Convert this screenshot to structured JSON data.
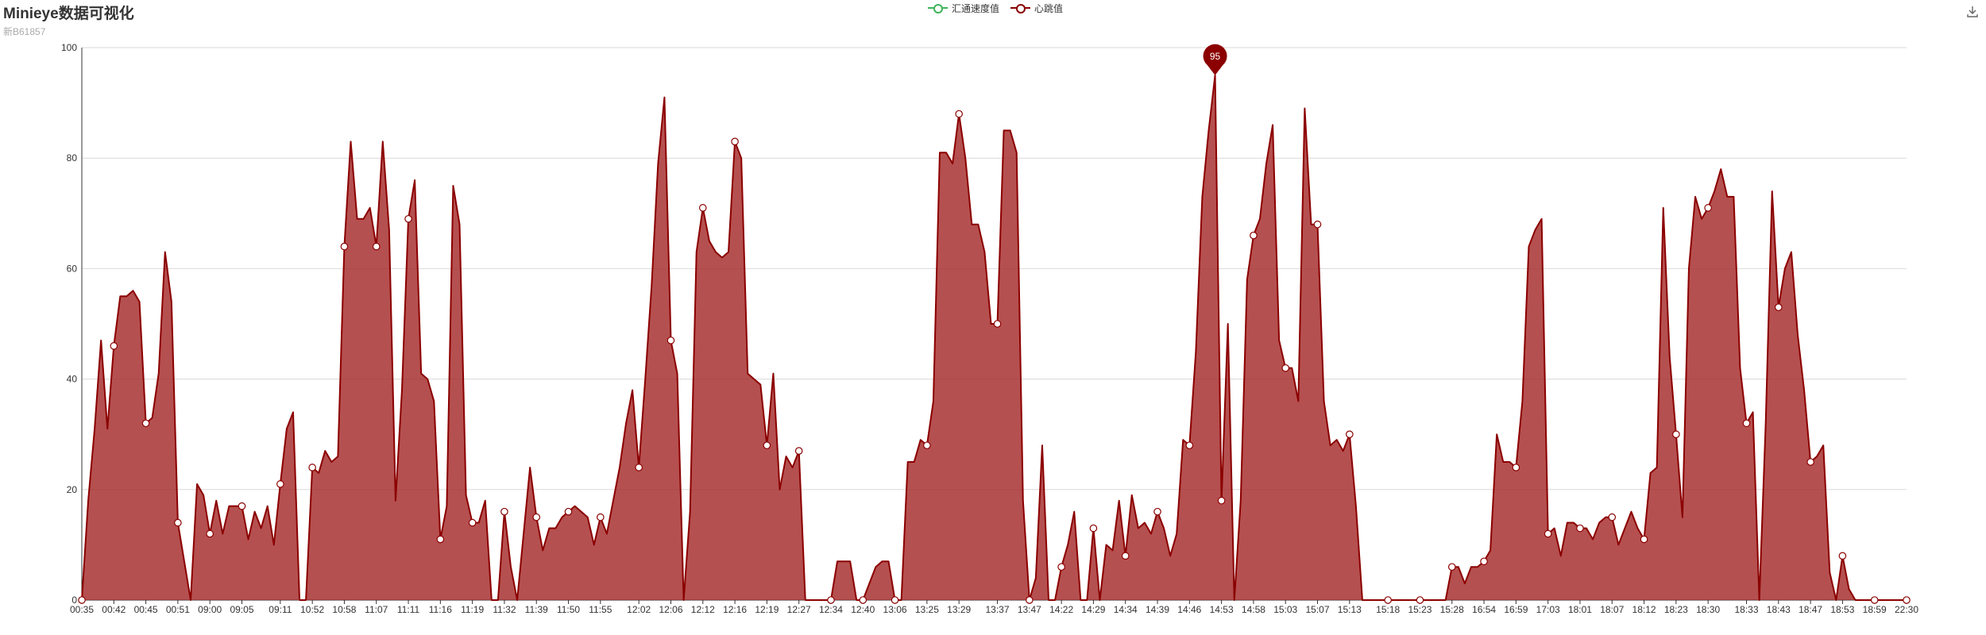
{
  "title": "Minieye数据可视化",
  "subtitle": "新B61857",
  "legend": [
    {
      "name": "汇通速度值",
      "color": "#3fb35a"
    },
    {
      "name": "心跳值",
      "color": "#8b0000"
    }
  ],
  "toolbox": {
    "icon": "download-icon"
  },
  "colors": {
    "area_fill": "#a52a2a",
    "line": "#8b0000",
    "grid": "#d9d9d9",
    "axis": "#333333",
    "marker": "#8b0000"
  },
  "chart_data": {
    "type": "area",
    "title": "Minieye数据可视化",
    "subtitle": "新B61857",
    "xlabel": "",
    "ylabel": "",
    "ylim": [
      0,
      100
    ],
    "yticks": [
      0,
      20,
      40,
      60,
      80,
      100
    ],
    "grid": true,
    "legend_position": "top-center",
    "x_tick_labels": [
      "00:35",
      "00:42",
      "00:45",
      "00:51",
      "09:00",
      "09:05",
      "09:11",
      "10:52",
      "10:58",
      "11:07",
      "11:11",
      "11:16",
      "11:19",
      "11:32",
      "11:39",
      "11:50",
      "11:55",
      "12:02",
      "12:06",
      "12:12",
      "12:16",
      "12:19",
      "12:27",
      "12:34",
      "12:40",
      "13:06",
      "13:25",
      "13:29",
      "13:37",
      "13:47",
      "14:22",
      "14:29",
      "14:34",
      "14:39",
      "14:46",
      "14:53",
      "14:58",
      "15:03",
      "15:07",
      "15:13",
      "15:18",
      "15:23",
      "15:28",
      "16:54",
      "16:59",
      "17:03",
      "18:01",
      "18:07",
      "18:12",
      "18:23",
      "18:30",
      "18:33",
      "18:43",
      "18:47",
      "18:53",
      "18:59",
      "22:30"
    ],
    "series": [
      {
        "name": "汇通速度值",
        "values": []
      },
      {
        "name": "心跳值",
        "values": [
          0,
          18,
          31,
          47,
          31,
          46,
          55,
          55,
          56,
          54,
          32,
          33,
          41,
          63,
          54,
          14,
          7,
          0,
          21,
          19,
          12,
          18,
          12,
          17,
          17,
          17,
          11,
          16,
          13,
          17,
          10,
          21,
          31,
          34,
          0,
          0,
          24,
          23,
          27,
          25,
          26,
          64,
          83,
          69,
          69,
          71,
          64,
          83,
          67,
          18,
          38,
          69,
          76,
          41,
          40,
          36,
          11,
          17,
          75,
          68,
          19,
          14,
          14,
          18,
          0,
          0,
          16,
          6,
          0,
          12,
          24,
          15,
          9,
          13,
          13,
          15,
          16,
          17,
          16,
          15,
          10,
          15,
          12,
          18,
          24,
          32,
          38,
          24,
          40,
          57,
          79,
          91,
          47,
          41,
          0,
          16,
          63,
          71,
          65,
          63,
          62,
          63,
          83,
          80,
          41,
          40,
          39,
          28,
          41,
          20,
          26,
          24,
          27,
          0,
          0,
          0,
          0,
          0,
          7,
          7,
          7,
          0,
          0,
          3,
          6,
          7,
          7,
          0,
          0,
          25,
          25,
          29,
          28,
          36,
          81,
          81,
          79,
          88,
          80,
          68,
          68,
          63,
          50,
          50,
          85,
          85,
          81,
          18,
          0,
          4,
          28,
          0,
          0,
          6,
          10,
          16,
          0,
          0,
          13,
          0,
          10,
          9,
          18,
          8,
          19,
          13,
          14,
          12,
          16,
          13,
          8,
          12,
          29,
          28,
          45,
          73,
          85,
          95,
          18,
          50,
          0,
          18,
          58,
          66,
          69,
          79,
          86,
          47,
          42,
          42,
          36,
          89,
          68,
          68,
          36,
          28,
          29,
          27,
          30,
          17,
          0,
          0,
          0,
          0,
          0,
          0,
          0,
          0,
          0,
          0,
          0,
          0,
          0,
          0,
          6,
          6,
          3,
          6,
          6,
          7,
          9,
          30,
          25,
          25,
          24,
          36,
          64,
          67,
          69,
          12,
          13,
          8,
          14,
          14,
          13,
          13,
          11,
          14,
          15,
          15,
          10,
          13,
          16,
          13,
          11,
          23,
          24,
          71,
          44,
          30,
          15,
          60,
          73,
          69,
          71,
          74,
          78,
          73,
          73,
          42,
          32,
          34,
          0,
          32,
          74,
          53,
          60,
          63,
          48,
          38,
          25,
          26,
          28,
          5,
          0,
          8,
          2,
          0,
          0,
          0,
          0,
          0,
          0,
          0,
          0,
          0
        ]
      }
    ],
    "max_marker": {
      "value": 95
    }
  }
}
